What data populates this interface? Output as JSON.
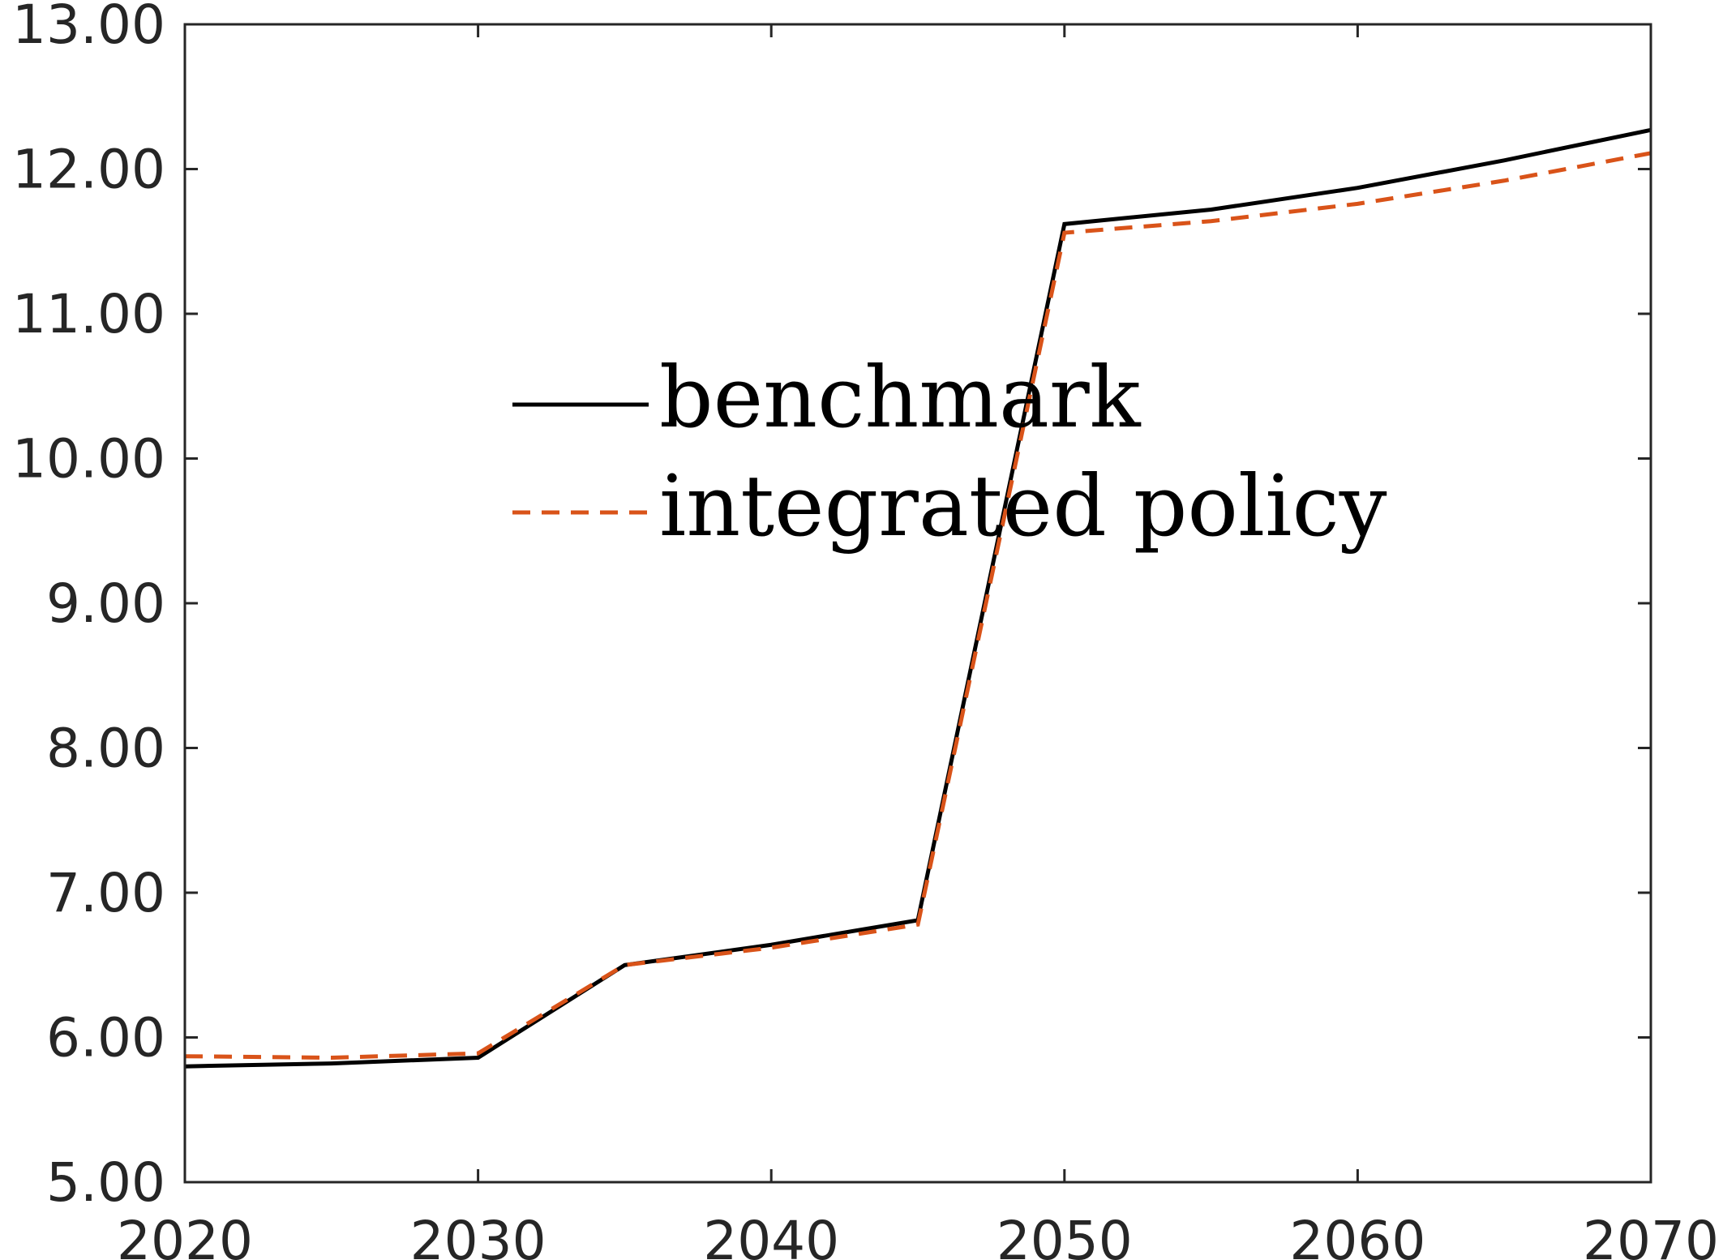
{
  "chart_data": {
    "type": "line",
    "title": "",
    "xlabel": "",
    "ylabel": "",
    "xlim": [
      2020,
      2070
    ],
    "ylim": [
      5,
      13
    ],
    "x_ticks": [
      2020,
      2030,
      2040,
      2050,
      2060,
      2070
    ],
    "x_tick_labels": [
      "2020",
      "2030",
      "2040",
      "2050",
      "2060",
      "2070"
    ],
    "y_ticks": [
      5,
      6,
      7,
      8,
      9,
      10,
      11,
      12,
      13
    ],
    "y_tick_labels": [
      "5.00",
      "6.00",
      "7.00",
      "8.00",
      "9.00",
      "10.00",
      "11.00",
      "12.00",
      "13.00"
    ],
    "grid": false,
    "legend_position": "center-left inside plot",
    "x": [
      2020,
      2025,
      2030,
      2035,
      2040,
      2045,
      2050,
      2055,
      2060,
      2065,
      2070
    ],
    "series": [
      {
        "name": "benchmark",
        "color": "#000000",
        "line_style": "solid",
        "values": [
          5.8,
          5.82,
          5.86,
          6.5,
          6.64,
          6.81,
          11.62,
          11.72,
          11.87,
          12.06,
          12.27
        ]
      },
      {
        "name": "integrated policy",
        "color": "#D95319",
        "line_style": "dashed",
        "values": [
          5.87,
          5.86,
          5.89,
          6.5,
          6.62,
          6.78,
          11.56,
          11.64,
          11.76,
          11.92,
          12.11
        ]
      }
    ]
  }
}
